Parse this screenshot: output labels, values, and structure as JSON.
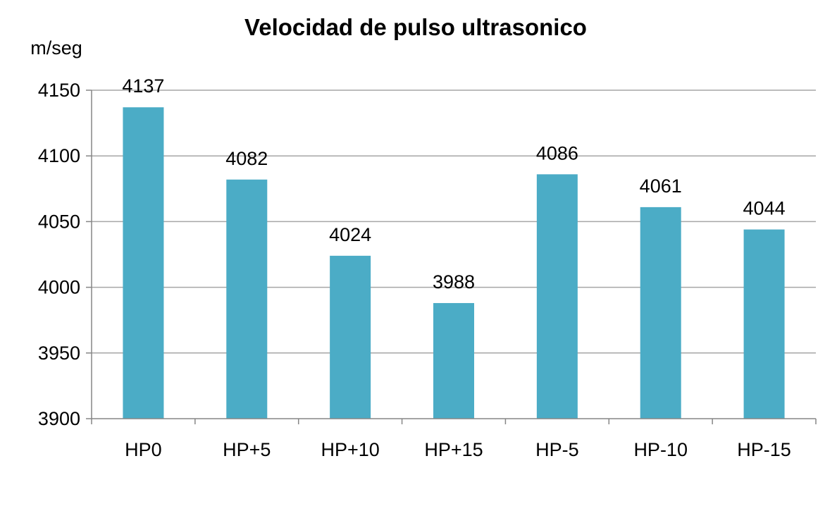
{
  "chart_data": {
    "type": "bar",
    "title": "Velocidad de pulso ultrasonico",
    "ylabel": "m/seg",
    "xlabel": "",
    "categories": [
      "HP0",
      "HP+5",
      "HP+10",
      "HP+15",
      "HP-5",
      "HP-10",
      "HP-15"
    ],
    "values": [
      4137,
      4082,
      4024,
      3988,
      4086,
      4061,
      4044
    ],
    "data_labels": [
      "4137",
      "4082",
      "4024",
      "3988",
      "4086",
      "4061",
      "4044"
    ],
    "ylim": [
      3900,
      4150
    ],
    "yticks": [
      3900,
      3950,
      4000,
      4050,
      4100,
      4150
    ],
    "ytick_labels": [
      "3900",
      "3950",
      "4000",
      "4050",
      "4100",
      "4150"
    ],
    "grid": true,
    "legend": "none",
    "colors": {
      "bar": "#4BACC6",
      "grid": "#A6A6A6",
      "axis": "#868686",
      "text": "#000000"
    }
  }
}
